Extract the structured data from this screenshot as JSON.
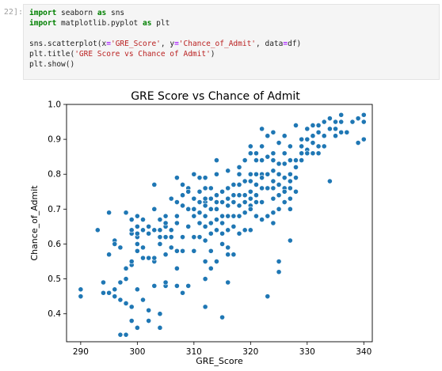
{
  "cell": {
    "prompt": "22]:",
    "code_lines": [
      [
        {
          "t": "import",
          "c": "kw"
        },
        {
          "t": " seaborn "
        },
        {
          "t": "as",
          "c": "kw"
        },
        {
          "t": " sns"
        }
      ],
      [
        {
          "t": "import",
          "c": "kw"
        },
        {
          "t": " matplotlib.pyplot "
        },
        {
          "t": "as",
          "c": "kw"
        },
        {
          "t": " plt"
        }
      ],
      [],
      [
        {
          "t": "sns.scatterplot(x"
        },
        {
          "t": "=",
          "c": "eq"
        },
        {
          "t": "'GRE_Score'",
          "c": "str"
        },
        {
          "t": ", y"
        },
        {
          "t": "=",
          "c": "eq"
        },
        {
          "t": "'Chance_of_Admit'",
          "c": "str"
        },
        {
          "t": ", data"
        },
        {
          "t": "=",
          "c": "eq"
        },
        {
          "t": "df)"
        }
      ],
      [
        {
          "t": "plt.title("
        },
        {
          "t": "'GRE Score vs Chance of Admit'",
          "c": "str"
        },
        {
          "t": ")"
        }
      ],
      [
        {
          "t": "plt.show()"
        }
      ]
    ]
  },
  "chart_data": {
    "type": "scatter",
    "title": "GRE Score vs Chance of Admit",
    "xlabel": "GRE_Score",
    "ylabel": "Chance_of_Admit",
    "xlim": [
      287.5,
      341.5
    ],
    "ylim": [
      0.32,
      1.0
    ],
    "x_ticks": [
      290,
      300,
      310,
      320,
      330,
      340
    ],
    "y_ticks": [
      0.4,
      0.5,
      0.6,
      0.7,
      0.8,
      0.9,
      1.0
    ],
    "grid": false,
    "point_color": "#1f77b4",
    "points": [
      [
        290,
        0.45
      ],
      [
        290,
        0.47
      ],
      [
        293,
        0.64
      ],
      [
        294,
        0.46
      ],
      [
        294,
        0.49
      ],
      [
        295,
        0.46
      ],
      [
        295,
        0.69
      ],
      [
        295,
        0.57
      ],
      [
        296,
        0.47
      ],
      [
        296,
        0.45
      ],
      [
        296,
        0.61
      ],
      [
        296,
        0.6
      ],
      [
        297,
        0.59
      ],
      [
        297,
        0.49
      ],
      [
        297,
        0.44
      ],
      [
        297,
        0.34
      ],
      [
        298,
        0.34
      ],
      [
        298,
        0.43
      ],
      [
        298,
        0.53
      ],
      [
        298,
        0.5
      ],
      [
        298,
        0.69
      ],
      [
        299,
        0.63
      ],
      [
        299,
        0.67
      ],
      [
        299,
        0.42
      ],
      [
        299,
        0.38
      ],
      [
        299,
        0.54
      ],
      [
        299,
        0.55
      ],
      [
        299,
        0.64
      ],
      [
        300,
        0.36
      ],
      [
        300,
        0.47
      ],
      [
        300,
        0.58
      ],
      [
        300,
        0.6
      ],
      [
        300,
        0.62
      ],
      [
        300,
        0.63
      ],
      [
        300,
        0.65
      ],
      [
        300,
        0.68
      ],
      [
        301,
        0.59
      ],
      [
        301,
        0.64
      ],
      [
        301,
        0.67
      ],
      [
        301,
        0.44
      ],
      [
        301,
        0.56
      ],
      [
        302,
        0.65
      ],
      [
        302,
        0.63
      ],
      [
        302,
        0.56
      ],
      [
        302,
        0.38
      ],
      [
        302,
        0.41
      ],
      [
        303,
        0.77
      ],
      [
        303,
        0.64
      ],
      [
        303,
        0.48
      ],
      [
        303,
        0.55
      ],
      [
        303,
        0.56
      ],
      [
        304,
        0.6
      ],
      [
        304,
        0.62
      ],
      [
        304,
        0.67
      ],
      [
        304,
        0.64
      ],
      [
        304,
        0.36
      ],
      [
        304,
        0.4
      ],
      [
        305,
        0.68
      ],
      [
        305,
        0.62
      ],
      [
        305,
        0.57
      ],
      [
        305,
        0.48
      ],
      [
        305,
        0.65
      ],
      [
        305,
        0.49
      ],
      [
        306,
        0.73
      ],
      [
        306,
        0.59
      ],
      [
        306,
        0.64
      ],
      [
        306,
        0.62
      ],
      [
        307,
        0.72
      ],
      [
        307,
        0.79
      ],
      [
        307,
        0.68
      ],
      [
        307,
        0.53
      ],
      [
        307,
        0.48
      ],
      [
        307,
        0.58
      ],
      [
        308,
        0.77
      ],
      [
        308,
        0.74
      ],
      [
        308,
        0.71
      ],
      [
        308,
        0.62
      ],
      [
        308,
        0.58
      ],
      [
        308,
        0.46
      ],
      [
        309,
        0.76
      ],
      [
        309,
        0.75
      ],
      [
        309,
        0.65
      ],
      [
        309,
        0.48
      ],
      [
        309,
        0.65
      ],
      [
        310,
        0.8
      ],
      [
        310,
        0.7
      ],
      [
        310,
        0.68
      ],
      [
        310,
        0.73
      ],
      [
        310,
        0.62
      ],
      [
        310,
        0.58
      ],
      [
        311,
        0.79
      ],
      [
        311,
        0.69
      ],
      [
        311,
        0.75
      ],
      [
        311,
        0.62
      ],
      [
        311,
        0.66
      ],
      [
        312,
        0.79
      ],
      [
        312,
        0.72
      ],
      [
        312,
        0.73
      ],
      [
        312,
        0.71
      ],
      [
        312,
        0.68
      ],
      [
        312,
        0.65
      ],
      [
        312,
        0.61
      ],
      [
        312,
        0.55
      ],
      [
        312,
        0.5
      ],
      [
        312,
        0.42
      ],
      [
        313,
        0.76
      ],
      [
        313,
        0.73
      ],
      [
        313,
        0.7
      ],
      [
        313,
        0.66
      ],
      [
        313,
        0.58
      ],
      [
        313,
        0.53
      ],
      [
        314,
        0.84
      ],
      [
        314,
        0.8
      ],
      [
        314,
        0.74
      ],
      [
        314,
        0.72
      ],
      [
        314,
        0.7
      ],
      [
        314,
        0.64
      ],
      [
        314,
        0.55
      ],
      [
        315,
        0.75
      ],
      [
        315,
        0.72
      ],
      [
        315,
        0.68
      ],
      [
        315,
        0.63
      ],
      [
        315,
        0.6
      ],
      [
        315,
        0.39
      ],
      [
        316,
        0.81
      ],
      [
        316,
        0.76
      ],
      [
        316,
        0.73
      ],
      [
        316,
        0.71
      ],
      [
        316,
        0.64
      ],
      [
        316,
        0.59
      ],
      [
        316,
        0.57
      ],
      [
        316,
        0.49
      ],
      [
        317,
        0.74
      ],
      [
        317,
        0.77
      ],
      [
        317,
        0.65
      ],
      [
        317,
        0.68
      ],
      [
        317,
        0.57
      ],
      [
        318,
        0.8
      ],
      [
        318,
        0.77
      ],
      [
        318,
        0.71
      ],
      [
        318,
        0.68
      ],
      [
        318,
        0.63
      ],
      [
        319,
        0.84
      ],
      [
        319,
        0.78
      ],
      [
        319,
        0.74
      ],
      [
        319,
        0.69
      ],
      [
        319,
        0.64
      ],
      [
        320,
        0.88
      ],
      [
        320,
        0.86
      ],
      [
        320,
        0.8
      ],
      [
        320,
        0.75
      ],
      [
        320,
        0.73
      ],
      [
        320,
        0.71
      ],
      [
        320,
        0.7
      ],
      [
        320,
        0.64
      ],
      [
        321,
        0.86
      ],
      [
        321,
        0.84
      ],
      [
        321,
        0.8
      ],
      [
        321,
        0.77
      ],
      [
        321,
        0.72
      ],
      [
        321,
        0.74
      ],
      [
        321,
        0.68
      ],
      [
        322,
        0.93
      ],
      [
        322,
        0.88
      ],
      [
        322,
        0.84
      ],
      [
        322,
        0.8
      ],
      [
        322,
        0.76
      ],
      [
        322,
        0.72
      ],
      [
        322,
        0.67
      ],
      [
        323,
        0.91
      ],
      [
        323,
        0.85
      ],
      [
        323,
        0.8
      ],
      [
        323,
        0.76
      ],
      [
        323,
        0.68
      ],
      [
        323,
        0.45
      ],
      [
        324,
        0.92
      ],
      [
        324,
        0.86
      ],
      [
        324,
        0.81
      ],
      [
        324,
        0.78
      ],
      [
        324,
        0.76
      ],
      [
        324,
        0.73
      ],
      [
        324,
        0.69
      ],
      [
        324,
        0.66
      ],
      [
        325,
        0.89
      ],
      [
        325,
        0.83
      ],
      [
        325,
        0.8
      ],
      [
        325,
        0.77
      ],
      [
        325,
        0.74
      ],
      [
        325,
        0.7
      ],
      [
        325,
        0.55
      ],
      [
        325,
        0.52
      ],
      [
        326,
        0.91
      ],
      [
        326,
        0.86
      ],
      [
        326,
        0.83
      ],
      [
        326,
        0.79
      ],
      [
        326,
        0.76
      ],
      [
        326,
        0.72
      ],
      [
        327,
        0.88
      ],
      [
        327,
        0.84
      ],
      [
        327,
        0.8
      ],
      [
        327,
        0.76
      ],
      [
        327,
        0.73
      ],
      [
        327,
        0.7
      ],
      [
        327,
        0.61
      ],
      [
        328,
        0.94
      ],
      [
        328,
        0.84
      ],
      [
        328,
        0.82
      ],
      [
        328,
        0.79
      ],
      [
        328,
        0.75
      ],
      [
        329,
        0.9
      ],
      [
        329,
        0.88
      ],
      [
        329,
        0.84
      ],
      [
        330,
        0.93
      ],
      [
        330,
        0.9
      ],
      [
        330,
        0.87
      ],
      [
        330,
        0.86
      ],
      [
        331,
        0.94
      ],
      [
        331,
        0.91
      ],
      [
        331,
        0.89
      ],
      [
        332,
        0.94
      ],
      [
        332,
        0.92
      ],
      [
        332,
        0.88
      ],
      [
        332,
        0.86
      ],
      [
        333,
        0.95
      ],
      [
        333,
        0.91
      ],
      [
        333,
        0.88
      ],
      [
        334,
        0.96
      ],
      [
        334,
        0.93
      ],
      [
        334,
        0.78
      ],
      [
        335,
        0.95
      ],
      [
        335,
        0.93
      ],
      [
        335,
        0.91
      ],
      [
        336,
        0.97
      ],
      [
        336,
        0.95
      ],
      [
        336,
        0.92
      ],
      [
        337,
        0.92
      ],
      [
        338,
        0.95
      ],
      [
        339,
        0.96
      ],
      [
        339,
        0.89
      ],
      [
        340,
        0.97
      ],
      [
        340,
        0.95
      ],
      [
        340,
        0.9
      ],
      [
        331,
        0.86
      ],
      [
        329,
        0.86
      ],
      [
        327,
        0.78
      ],
      [
        319,
        0.72
      ],
      [
        318,
        0.74
      ],
      [
        317,
        0.72
      ],
      [
        315,
        0.66
      ],
      [
        313,
        0.63
      ],
      [
        311,
        0.72
      ],
      [
        309,
        0.7
      ],
      [
        307,
        0.66
      ],
      [
        305,
        0.66
      ],
      [
        303,
        0.7
      ],
      [
        326,
        0.75
      ],
      [
        324,
        0.84
      ],
      [
        322,
        0.79
      ],
      [
        320,
        0.78
      ],
      [
        318,
        0.82
      ],
      [
        316,
        0.68
      ],
      [
        314,
        0.67
      ],
      [
        312,
        0.76
      ]
    ]
  }
}
